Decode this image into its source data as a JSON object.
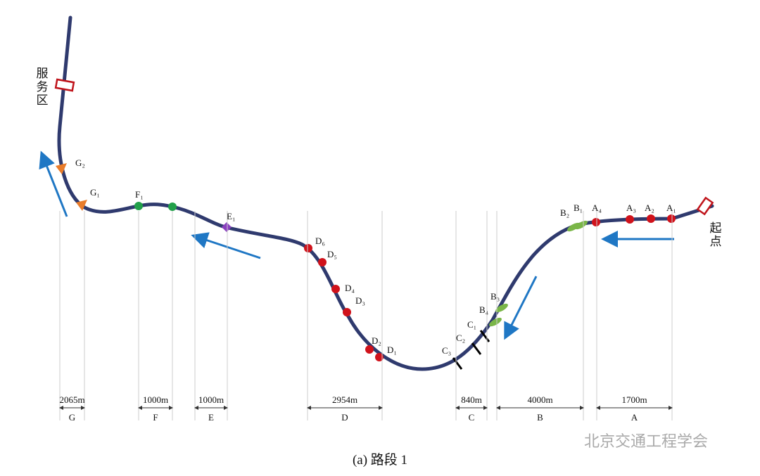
{
  "service_area": "服务区",
  "start": "起点",
  "markers": [
    {
      "label": "G₂"
    },
    {
      "label": "G₁"
    },
    {
      "label": "F₁"
    },
    {
      "label": "E₁"
    },
    {
      "label": "D₆"
    },
    {
      "label": "D₅"
    },
    {
      "label": "D₄"
    },
    {
      "label": "D₃"
    },
    {
      "label": "D₂"
    },
    {
      "label": "D₁"
    },
    {
      "label": "C₃"
    },
    {
      "label": "C₂"
    },
    {
      "label": "C₁"
    },
    {
      "label": "B₄"
    },
    {
      "label": "B₃"
    },
    {
      "label": "B₂"
    },
    {
      "label": "B₁"
    },
    {
      "label": "A₄"
    },
    {
      "label": "A₃"
    },
    {
      "label": "A₂"
    },
    {
      "label": "A₁"
    }
  ],
  "segments": [
    {
      "length": "2065m",
      "name": "G"
    },
    {
      "length": "1000m",
      "name": "F"
    },
    {
      "length": "1000m",
      "name": "E"
    },
    {
      "length": "2954m",
      "name": "D"
    },
    {
      "length": "840m",
      "name": "C"
    },
    {
      "length": "4000m",
      "name": "B"
    },
    {
      "length": "1700m",
      "name": "A"
    }
  ],
  "caption": "(a) 路段 1",
  "watermark": "北京交通工程学会"
}
